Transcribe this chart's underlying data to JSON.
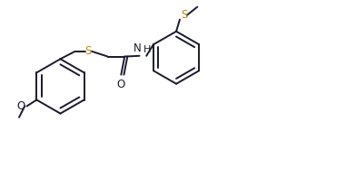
{
  "bg_color": "#ffffff",
  "line_color": "#1a1a2e",
  "S_color": "#b8860b",
  "line_width": 1.4,
  "font_size": 8.5,
  "figsize": [
    3.92,
    1.87
  ],
  "xlim": [
    0,
    10
  ],
  "ylim": [
    0,
    4.8
  ]
}
